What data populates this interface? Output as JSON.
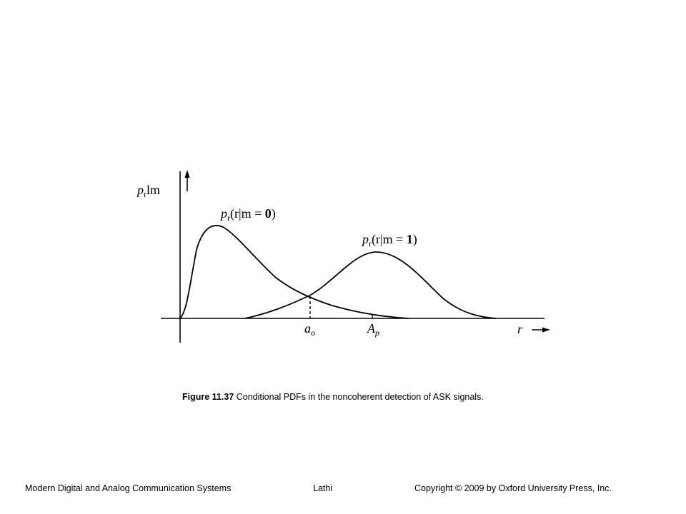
{
  "figure": {
    "y_axis_label": {
      "main": "p",
      "sub": "r",
      "rest": "lm"
    },
    "curve_m0_label": {
      "main": "p",
      "sub": "r",
      "args": "(r|m = ",
      "value": "0",
      "close": ")"
    },
    "curve_m1_label": {
      "main": "p",
      "sub": "r",
      "args": "(r|m = ",
      "value": "1",
      "close": ")"
    },
    "threshold_label": {
      "main": "a",
      "sub": "o"
    },
    "peak_label": {
      "main": "A",
      "sub": "p"
    },
    "x_axis_label": "r"
  },
  "caption": {
    "number": "Figure 11.37",
    "text": "Conditional PDFs in the noncoherent detection of ASK signals."
  },
  "footer": {
    "left": "Modern Digital and Analog Communication Systems",
    "center": "Lathi",
    "right": "Copyright © 2009 by Oxford University Press, Inc."
  },
  "colors": {
    "ink": "#000000",
    "background": "#ffffff"
  }
}
